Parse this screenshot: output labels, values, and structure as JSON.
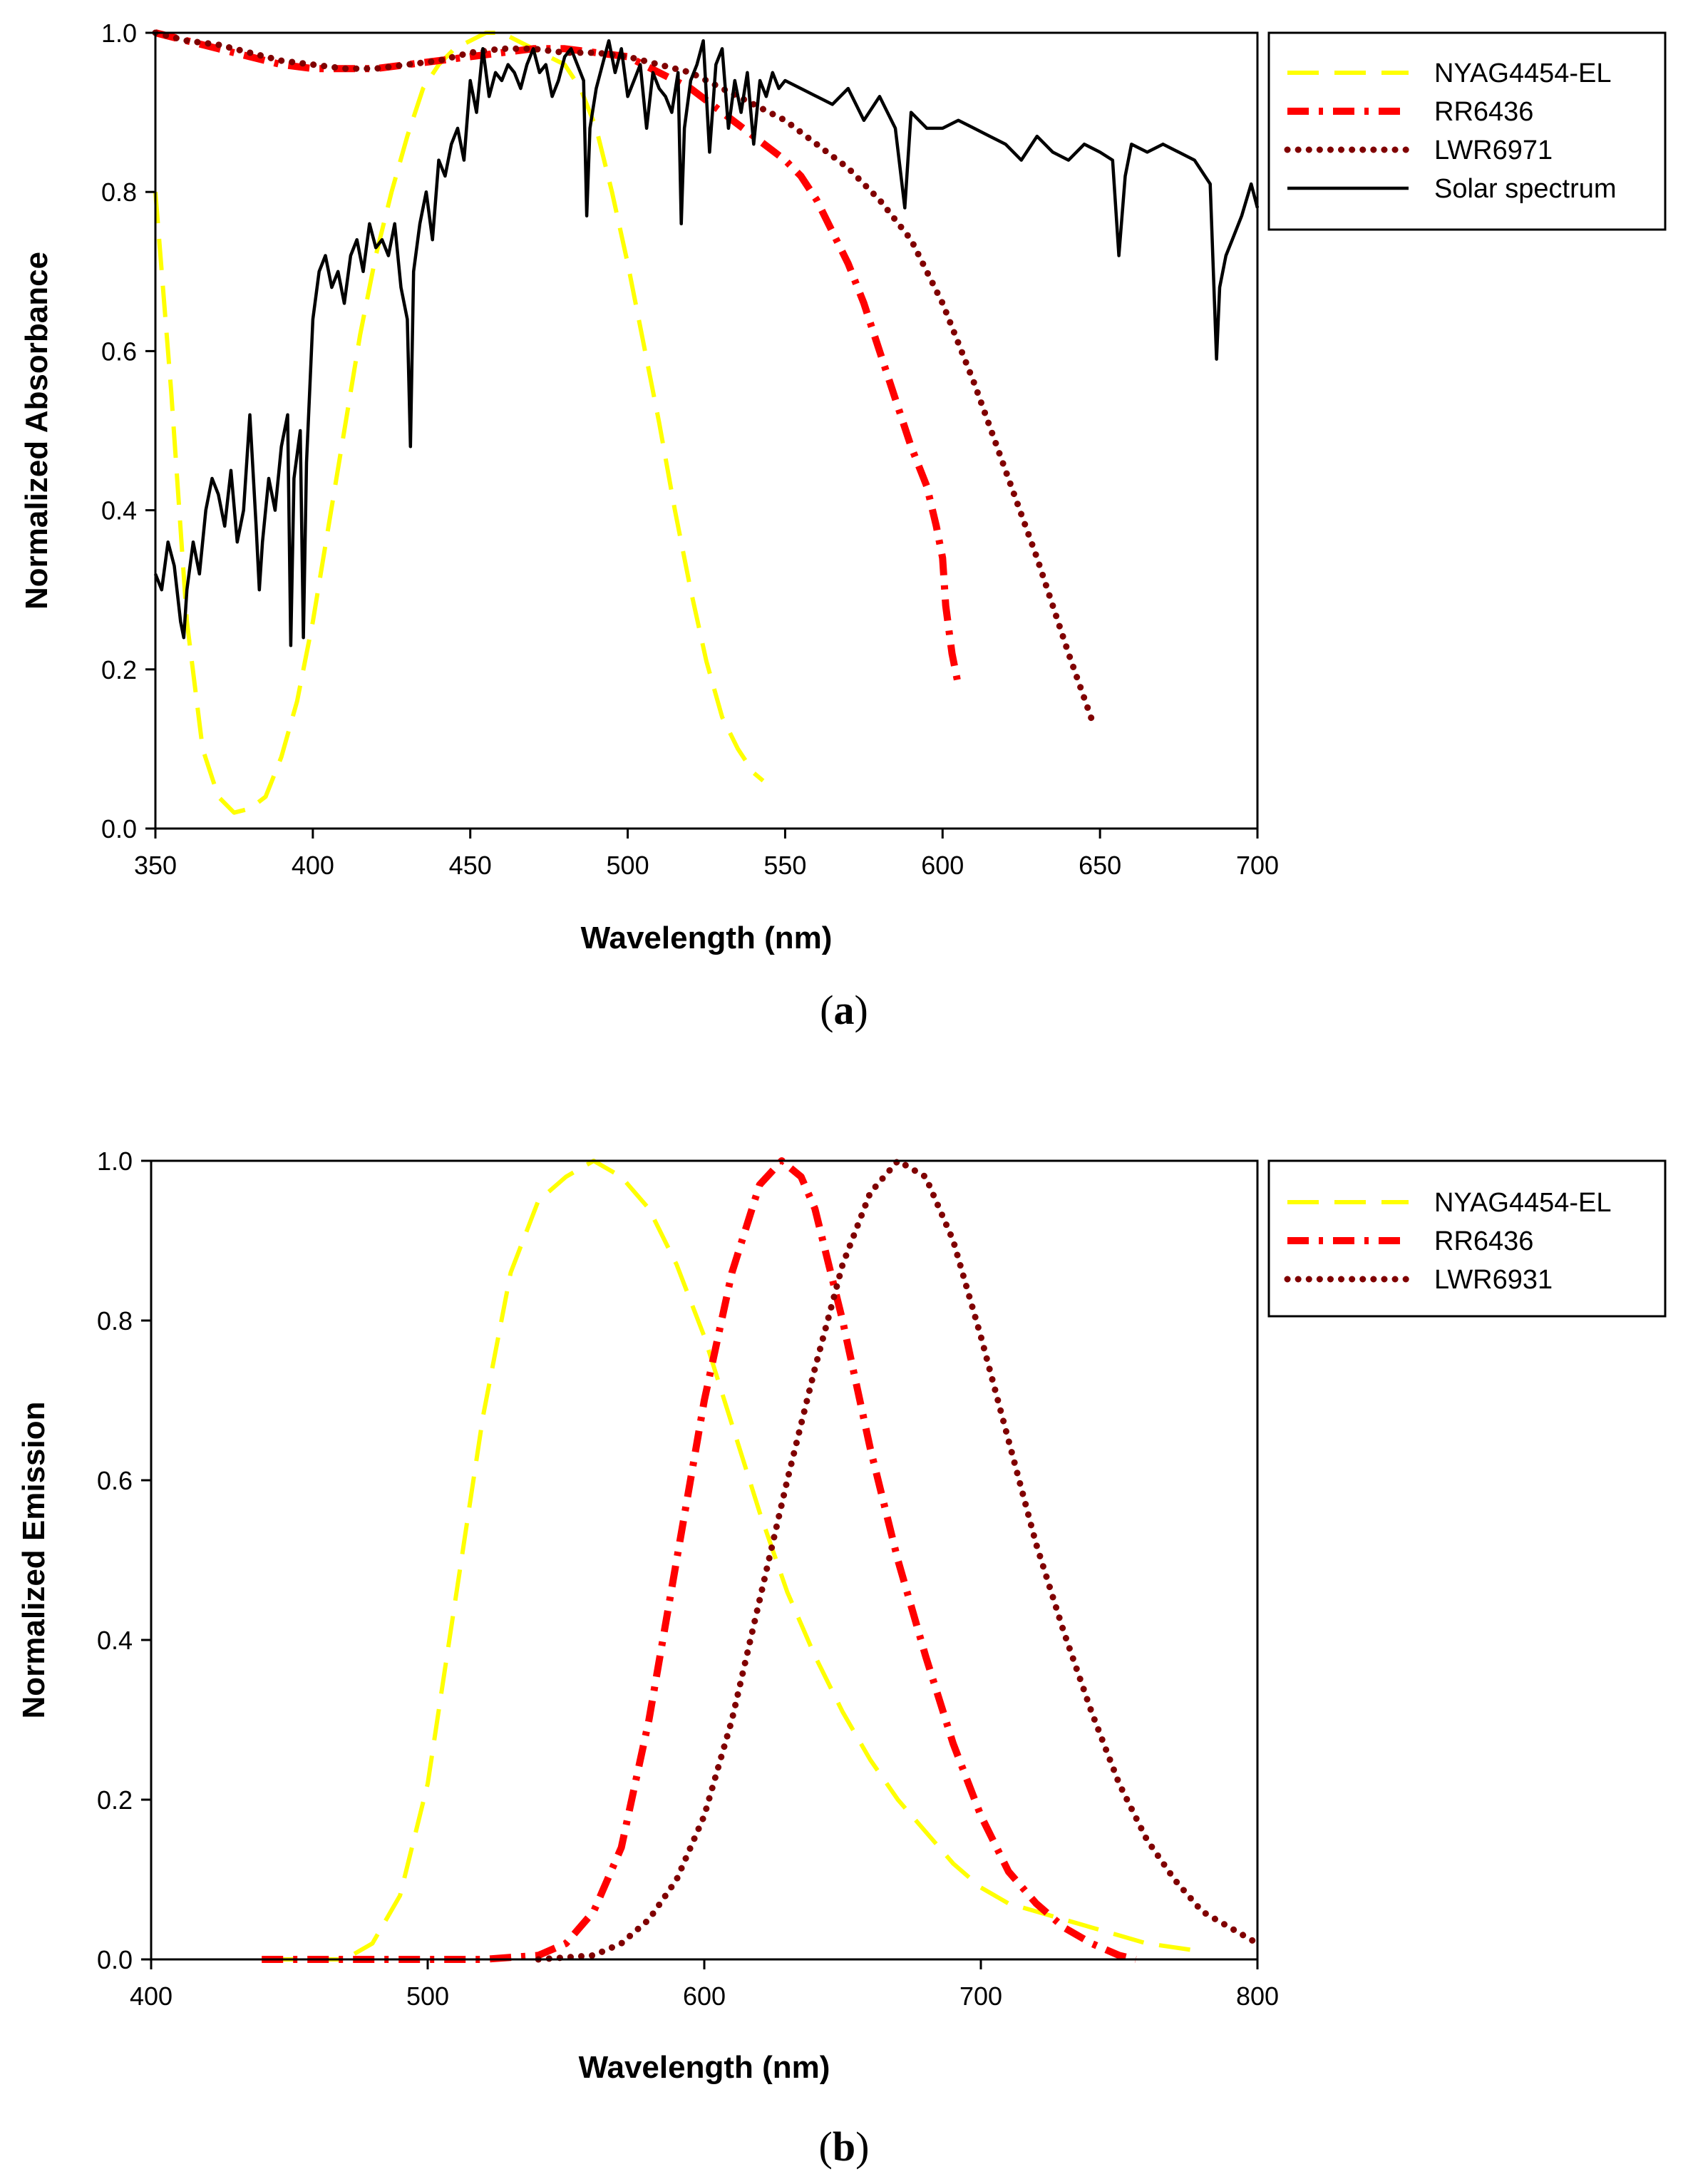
{
  "chart_data": [
    {
      "type": "line",
      "panel_label": "a",
      "title": "",
      "xlabel": "Wavelength (nm)",
      "ylabel": "Normalized Absorbance",
      "xlim": [
        350,
        700
      ],
      "ylim": [
        0.0,
        1.0
      ],
      "xticks": [
        350,
        400,
        450,
        500,
        550,
        600,
        650,
        700
      ],
      "yticks": [
        "0.0",
        "0.2",
        "0.4",
        "0.6",
        "0.8",
        "1.0"
      ],
      "legend_position": "top-right",
      "grid": false,
      "series": [
        {
          "name": "NYAG4454-EL",
          "color": "#ffff00",
          "style": "dashed",
          "x": [
            350,
            355,
            360,
            365,
            370,
            375,
            380,
            385,
            390,
            395,
            400,
            405,
            410,
            415,
            420,
            425,
            430,
            435,
            440,
            445,
            450,
            455,
            460,
            465,
            470,
            475,
            480,
            485,
            490,
            495,
            500,
            505,
            510,
            515,
            520,
            525,
            530,
            535,
            540,
            543
          ],
          "y": [
            0.8,
            0.55,
            0.26,
            0.1,
            0.04,
            0.02,
            0.025,
            0.04,
            0.09,
            0.16,
            0.26,
            0.38,
            0.5,
            0.62,
            0.72,
            0.8,
            0.87,
            0.93,
            0.96,
            0.98,
            0.99,
            1.0,
            1.0,
            0.99,
            0.98,
            0.97,
            0.96,
            0.93,
            0.88,
            0.8,
            0.71,
            0.61,
            0.51,
            0.4,
            0.3,
            0.21,
            0.14,
            0.1,
            0.07,
            0.06
          ]
        },
        {
          "name": "RR6436",
          "color": "#ff0000",
          "style": "dash-dot",
          "x": [
            350,
            360,
            370,
            380,
            390,
            400,
            410,
            420,
            430,
            440,
            450,
            460,
            470,
            480,
            490,
            500,
            510,
            520,
            530,
            540,
            550,
            555,
            560,
            565,
            570,
            575,
            580,
            585,
            590,
            595,
            598,
            600,
            601,
            603,
            605
          ],
          "y": [
            1.0,
            0.99,
            0.98,
            0.97,
            0.96,
            0.955,
            0.955,
            0.955,
            0.96,
            0.965,
            0.97,
            0.975,
            0.98,
            0.98,
            0.975,
            0.97,
            0.95,
            0.93,
            0.9,
            0.87,
            0.84,
            0.82,
            0.79,
            0.75,
            0.71,
            0.66,
            0.6,
            0.54,
            0.48,
            0.43,
            0.38,
            0.34,
            0.28,
            0.22,
            0.18
          ]
        },
        {
          "name": "LWR6971",
          "color": "#800000",
          "style": "dotted",
          "x": [
            350,
            360,
            370,
            380,
            390,
            400,
            410,
            420,
            430,
            440,
            450,
            460,
            470,
            480,
            490,
            500,
            510,
            520,
            530,
            540,
            550,
            560,
            570,
            580,
            590,
            600,
            610,
            620,
            630,
            640,
            648
          ],
          "y": [
            1.0,
            0.99,
            0.985,
            0.975,
            0.965,
            0.96,
            0.955,
            0.955,
            0.96,
            0.965,
            0.975,
            0.98,
            0.98,
            0.975,
            0.975,
            0.97,
            0.96,
            0.95,
            0.93,
            0.91,
            0.89,
            0.86,
            0.83,
            0.79,
            0.74,
            0.66,
            0.56,
            0.45,
            0.34,
            0.22,
            0.13
          ]
        },
        {
          "name": "Solar spectrum",
          "color": "#000000",
          "style": "solid",
          "x": [
            350,
            352,
            354,
            356,
            358,
            359,
            360,
            362,
            364,
            366,
            368,
            370,
            372,
            374,
            376,
            378,
            380,
            382,
            383,
            384,
            386,
            388,
            390,
            392,
            393,
            394,
            396,
            397,
            398,
            400,
            402,
            404,
            406,
            408,
            410,
            412,
            414,
            416,
            418,
            420,
            422,
            424,
            426,
            428,
            430,
            431,
            432,
            434,
            436,
            438,
            440,
            442,
            444,
            446,
            448,
            450,
            452,
            454,
            456,
            458,
            460,
            462,
            464,
            466,
            468,
            470,
            472,
            474,
            476,
            478,
            480,
            482,
            484,
            486,
            487,
            488,
            490,
            492,
            494,
            496,
            498,
            500,
            502,
            504,
            506,
            508,
            510,
            512,
            514,
            516,
            517,
            518,
            520,
            522,
            524,
            526,
            528,
            530,
            532,
            534,
            536,
            538,
            540,
            542,
            544,
            546,
            548,
            550,
            555,
            560,
            565,
            570,
            575,
            580,
            585,
            588,
            590,
            595,
            600,
            605,
            610,
            615,
            620,
            625,
            630,
            635,
            640,
            645,
            650,
            654,
            656,
            658,
            660,
            665,
            670,
            675,
            680,
            685,
            687,
            688,
            690,
            692,
            695,
            698,
            700
          ],
          "y": [
            0.32,
            0.3,
            0.36,
            0.33,
            0.26,
            0.24,
            0.3,
            0.36,
            0.32,
            0.4,
            0.44,
            0.42,
            0.38,
            0.45,
            0.36,
            0.4,
            0.52,
            0.38,
            0.3,
            0.36,
            0.44,
            0.4,
            0.48,
            0.52,
            0.23,
            0.44,
            0.5,
            0.24,
            0.46,
            0.64,
            0.7,
            0.72,
            0.68,
            0.7,
            0.66,
            0.72,
            0.74,
            0.7,
            0.76,
            0.73,
            0.74,
            0.72,
            0.76,
            0.68,
            0.64,
            0.48,
            0.7,
            0.76,
            0.8,
            0.74,
            0.84,
            0.82,
            0.86,
            0.88,
            0.84,
            0.94,
            0.9,
            0.98,
            0.92,
            0.95,
            0.94,
            0.96,
            0.95,
            0.93,
            0.96,
            0.98,
            0.95,
            0.96,
            0.92,
            0.94,
            0.97,
            0.98,
            0.96,
            0.94,
            0.77,
            0.88,
            0.93,
            0.96,
            0.99,
            0.95,
            0.98,
            0.92,
            0.94,
            0.96,
            0.88,
            0.95,
            0.93,
            0.92,
            0.9,
            0.95,
            0.76,
            0.88,
            0.94,
            0.96,
            0.99,
            0.85,
            0.96,
            0.98,
            0.88,
            0.94,
            0.9,
            0.95,
            0.86,
            0.94,
            0.92,
            0.95,
            0.93,
            0.94,
            0.93,
            0.92,
            0.91,
            0.93,
            0.89,
            0.92,
            0.88,
            0.78,
            0.9,
            0.88,
            0.88,
            0.89,
            0.88,
            0.87,
            0.86,
            0.84,
            0.87,
            0.85,
            0.84,
            0.86,
            0.85,
            0.84,
            0.72,
            0.82,
            0.86,
            0.85,
            0.86,
            0.85,
            0.84,
            0.81,
            0.59,
            0.68,
            0.72,
            0.74,
            0.77,
            0.81,
            0.78
          ]
        }
      ]
    },
    {
      "type": "line",
      "panel_label": "b",
      "title": "",
      "xlabel": "Wavelength (nm)",
      "ylabel": "Normalized Emission",
      "xlim": [
        400,
        800
      ],
      "ylim": [
        0.0,
        1.0
      ],
      "xticks": [
        400,
        500,
        600,
        700,
        800
      ],
      "yticks": [
        "0.0",
        "0.2",
        "0.4",
        "0.6",
        "0.8",
        "1.0"
      ],
      "legend_position": "top-right",
      "grid": false,
      "series": [
        {
          "name": "NYAG4454-EL",
          "color": "#ffff00",
          "style": "dashed",
          "x": [
            440,
            460,
            470,
            480,
            490,
            500,
            510,
            520,
            530,
            540,
            550,
            560,
            570,
            580,
            590,
            600,
            610,
            620,
            630,
            640,
            650,
            660,
            670,
            680,
            690,
            700,
            710,
            720,
            730,
            740,
            750,
            760,
            770,
            780
          ],
          "y": [
            0.0,
            0.0,
            0.0,
            0.02,
            0.08,
            0.22,
            0.45,
            0.68,
            0.86,
            0.95,
            0.98,
            1.0,
            0.98,
            0.94,
            0.87,
            0.78,
            0.67,
            0.56,
            0.46,
            0.38,
            0.31,
            0.25,
            0.2,
            0.16,
            0.12,
            0.09,
            0.07,
            0.06,
            0.05,
            0.04,
            0.03,
            0.02,
            0.015,
            0.01
          ]
        },
        {
          "name": "RR6436",
          "color": "#ff0000",
          "style": "dash-dot",
          "x": [
            440,
            480,
            520,
            540,
            550,
            560,
            570,
            580,
            590,
            600,
            610,
            620,
            628,
            635,
            640,
            650,
            660,
            670,
            680,
            690,
            700,
            710,
            720,
            730,
            740,
            750,
            756
          ],
          "y": [
            0.0,
            0.0,
            0.0,
            0.005,
            0.02,
            0.06,
            0.14,
            0.3,
            0.5,
            0.7,
            0.86,
            0.97,
            1.0,
            0.98,
            0.94,
            0.8,
            0.64,
            0.5,
            0.38,
            0.27,
            0.18,
            0.11,
            0.07,
            0.04,
            0.02,
            0.005,
            0.0
          ]
        },
        {
          "name": "LWR6931",
          "color": "#800000",
          "style": "dotted",
          "x": [
            540,
            560,
            570,
            580,
            590,
            600,
            610,
            620,
            630,
            640,
            650,
            660,
            670,
            680,
            690,
            700,
            710,
            720,
            730,
            740,
            750,
            760,
            770,
            780,
            790,
            800
          ],
          "y": [
            0.0,
            0.005,
            0.02,
            0.05,
            0.1,
            0.18,
            0.3,
            0.45,
            0.6,
            0.74,
            0.87,
            0.96,
            1.0,
            0.98,
            0.9,
            0.78,
            0.65,
            0.52,
            0.41,
            0.31,
            0.22,
            0.15,
            0.1,
            0.06,
            0.04,
            0.02
          ]
        }
      ]
    }
  ]
}
